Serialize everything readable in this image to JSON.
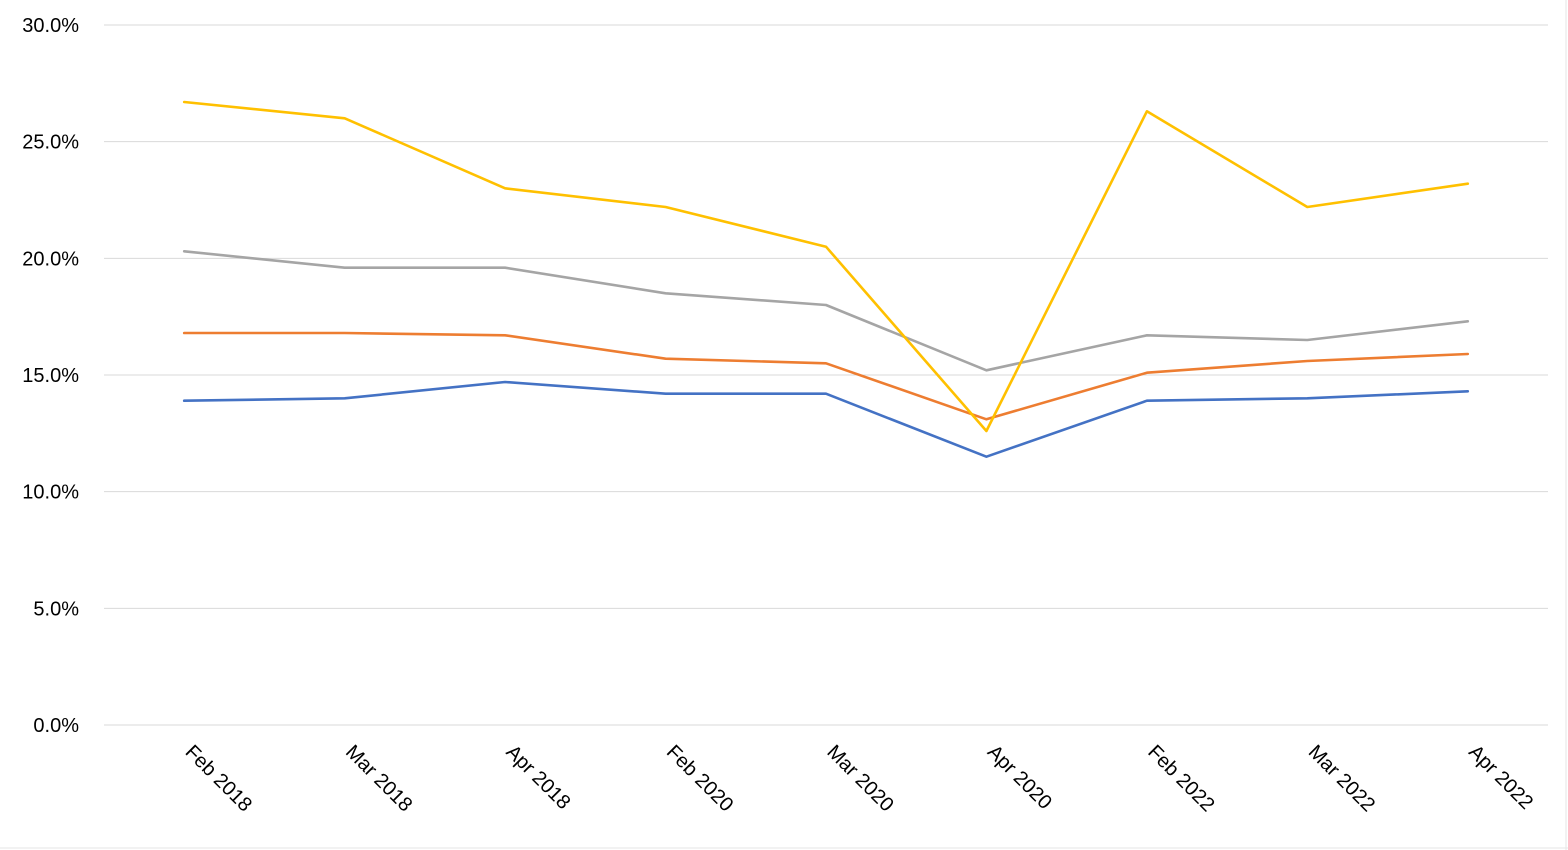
{
  "chart_data": {
    "type": "line",
    "categories": [
      "Feb 2018",
      "Mar 2018",
      "Apr 2018",
      "Feb 2020",
      "Mar 2020",
      "Apr 2020",
      "Feb 2022",
      "Mar 2022",
      "Apr 2022"
    ],
    "y_ticks": [
      "0.0%",
      "5.0%",
      "10.0%",
      "15.0%",
      "20.0%",
      "25.0%",
      "30.0%"
    ],
    "ylim": [
      0,
      30
    ],
    "y_format": "percent",
    "grid": true,
    "legend": "none",
    "title": "",
    "xlabel": "",
    "ylabel": "",
    "series": [
      {
        "color": "#4472c4",
        "values": [
          13.9,
          14.0,
          14.7,
          14.2,
          14.2,
          11.5,
          13.9,
          14.0,
          14.3
        ]
      },
      {
        "color": "#ed7d31",
        "values": [
          16.8,
          16.8,
          16.7,
          15.7,
          15.5,
          13.1,
          15.1,
          15.6,
          15.9
        ]
      },
      {
        "color": "#a5a5a5",
        "values": [
          20.3,
          19.6,
          19.6,
          18.5,
          18.0,
          15.2,
          16.7,
          16.5,
          17.3
        ]
      },
      {
        "color": "#ffc000",
        "values": [
          26.7,
          26.0,
          23.0,
          22.2,
          20.5,
          12.6,
          26.3,
          22.2,
          23.2
        ]
      }
    ]
  }
}
